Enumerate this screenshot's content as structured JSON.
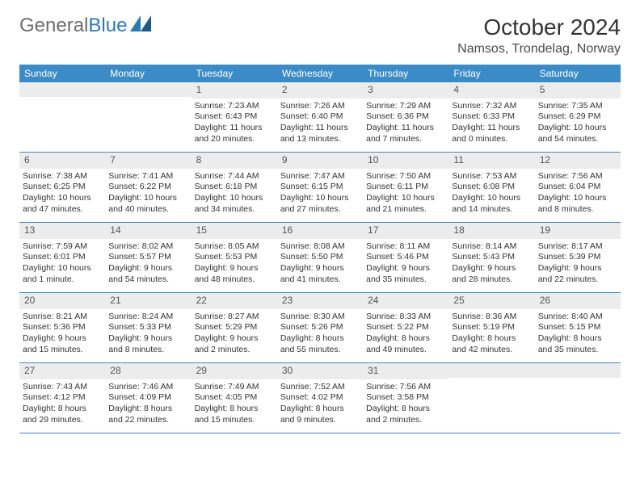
{
  "logo": {
    "line1": "General",
    "line2": "Blue"
  },
  "month_title": "October 2024",
  "location": "Namsos, Trondelag, Norway",
  "colors": {
    "header_bar": "#3b8bc7",
    "daynum_bg": "#ececec",
    "logo_gray": "#6d6d6d",
    "logo_blue": "#2a7ab9",
    "logo_icon": "#2a7ab9"
  },
  "weekdays": [
    "Sunday",
    "Monday",
    "Tuesday",
    "Wednesday",
    "Thursday",
    "Friday",
    "Saturday"
  ],
  "weeks": [
    [
      {
        "empty": true
      },
      {
        "empty": true
      },
      {
        "num": "1",
        "sunrise": "Sunrise: 7:23 AM",
        "sunset": "Sunset: 6:43 PM",
        "dl1": "Daylight: 11 hours",
        "dl2": "and 20 minutes."
      },
      {
        "num": "2",
        "sunrise": "Sunrise: 7:26 AM",
        "sunset": "Sunset: 6:40 PM",
        "dl1": "Daylight: 11 hours",
        "dl2": "and 13 minutes."
      },
      {
        "num": "3",
        "sunrise": "Sunrise: 7:29 AM",
        "sunset": "Sunset: 6:36 PM",
        "dl1": "Daylight: 11 hours",
        "dl2": "and 7 minutes."
      },
      {
        "num": "4",
        "sunrise": "Sunrise: 7:32 AM",
        "sunset": "Sunset: 6:33 PM",
        "dl1": "Daylight: 11 hours",
        "dl2": "and 0 minutes."
      },
      {
        "num": "5",
        "sunrise": "Sunrise: 7:35 AM",
        "sunset": "Sunset: 6:29 PM",
        "dl1": "Daylight: 10 hours",
        "dl2": "and 54 minutes."
      }
    ],
    [
      {
        "num": "6",
        "sunrise": "Sunrise: 7:38 AM",
        "sunset": "Sunset: 6:25 PM",
        "dl1": "Daylight: 10 hours",
        "dl2": "and 47 minutes."
      },
      {
        "num": "7",
        "sunrise": "Sunrise: 7:41 AM",
        "sunset": "Sunset: 6:22 PM",
        "dl1": "Daylight: 10 hours",
        "dl2": "and 40 minutes."
      },
      {
        "num": "8",
        "sunrise": "Sunrise: 7:44 AM",
        "sunset": "Sunset: 6:18 PM",
        "dl1": "Daylight: 10 hours",
        "dl2": "and 34 minutes."
      },
      {
        "num": "9",
        "sunrise": "Sunrise: 7:47 AM",
        "sunset": "Sunset: 6:15 PM",
        "dl1": "Daylight: 10 hours",
        "dl2": "and 27 minutes."
      },
      {
        "num": "10",
        "sunrise": "Sunrise: 7:50 AM",
        "sunset": "Sunset: 6:11 PM",
        "dl1": "Daylight: 10 hours",
        "dl2": "and 21 minutes."
      },
      {
        "num": "11",
        "sunrise": "Sunrise: 7:53 AM",
        "sunset": "Sunset: 6:08 PM",
        "dl1": "Daylight: 10 hours",
        "dl2": "and 14 minutes."
      },
      {
        "num": "12",
        "sunrise": "Sunrise: 7:56 AM",
        "sunset": "Sunset: 6:04 PM",
        "dl1": "Daylight: 10 hours",
        "dl2": "and 8 minutes."
      }
    ],
    [
      {
        "num": "13",
        "sunrise": "Sunrise: 7:59 AM",
        "sunset": "Sunset: 6:01 PM",
        "dl1": "Daylight: 10 hours",
        "dl2": "and 1 minute."
      },
      {
        "num": "14",
        "sunrise": "Sunrise: 8:02 AM",
        "sunset": "Sunset: 5:57 PM",
        "dl1": "Daylight: 9 hours",
        "dl2": "and 54 minutes."
      },
      {
        "num": "15",
        "sunrise": "Sunrise: 8:05 AM",
        "sunset": "Sunset: 5:53 PM",
        "dl1": "Daylight: 9 hours",
        "dl2": "and 48 minutes."
      },
      {
        "num": "16",
        "sunrise": "Sunrise: 8:08 AM",
        "sunset": "Sunset: 5:50 PM",
        "dl1": "Daylight: 9 hours",
        "dl2": "and 41 minutes."
      },
      {
        "num": "17",
        "sunrise": "Sunrise: 8:11 AM",
        "sunset": "Sunset: 5:46 PM",
        "dl1": "Daylight: 9 hours",
        "dl2": "and 35 minutes."
      },
      {
        "num": "18",
        "sunrise": "Sunrise: 8:14 AM",
        "sunset": "Sunset: 5:43 PM",
        "dl1": "Daylight: 9 hours",
        "dl2": "and 28 minutes."
      },
      {
        "num": "19",
        "sunrise": "Sunrise: 8:17 AM",
        "sunset": "Sunset: 5:39 PM",
        "dl1": "Daylight: 9 hours",
        "dl2": "and 22 minutes."
      }
    ],
    [
      {
        "num": "20",
        "sunrise": "Sunrise: 8:21 AM",
        "sunset": "Sunset: 5:36 PM",
        "dl1": "Daylight: 9 hours",
        "dl2": "and 15 minutes."
      },
      {
        "num": "21",
        "sunrise": "Sunrise: 8:24 AM",
        "sunset": "Sunset: 5:33 PM",
        "dl1": "Daylight: 9 hours",
        "dl2": "and 8 minutes."
      },
      {
        "num": "22",
        "sunrise": "Sunrise: 8:27 AM",
        "sunset": "Sunset: 5:29 PM",
        "dl1": "Daylight: 9 hours",
        "dl2": "and 2 minutes."
      },
      {
        "num": "23",
        "sunrise": "Sunrise: 8:30 AM",
        "sunset": "Sunset: 5:26 PM",
        "dl1": "Daylight: 8 hours",
        "dl2": "and 55 minutes."
      },
      {
        "num": "24",
        "sunrise": "Sunrise: 8:33 AM",
        "sunset": "Sunset: 5:22 PM",
        "dl1": "Daylight: 8 hours",
        "dl2": "and 49 minutes."
      },
      {
        "num": "25",
        "sunrise": "Sunrise: 8:36 AM",
        "sunset": "Sunset: 5:19 PM",
        "dl1": "Daylight: 8 hours",
        "dl2": "and 42 minutes."
      },
      {
        "num": "26",
        "sunrise": "Sunrise: 8:40 AM",
        "sunset": "Sunset: 5:15 PM",
        "dl1": "Daylight: 8 hours",
        "dl2": "and 35 minutes."
      }
    ],
    [
      {
        "num": "27",
        "sunrise": "Sunrise: 7:43 AM",
        "sunset": "Sunset: 4:12 PM",
        "dl1": "Daylight: 8 hours",
        "dl2": "and 29 minutes."
      },
      {
        "num": "28",
        "sunrise": "Sunrise: 7:46 AM",
        "sunset": "Sunset: 4:09 PM",
        "dl1": "Daylight: 8 hours",
        "dl2": "and 22 minutes."
      },
      {
        "num": "29",
        "sunrise": "Sunrise: 7:49 AM",
        "sunset": "Sunset: 4:05 PM",
        "dl1": "Daylight: 8 hours",
        "dl2": "and 15 minutes."
      },
      {
        "num": "30",
        "sunrise": "Sunrise: 7:52 AM",
        "sunset": "Sunset: 4:02 PM",
        "dl1": "Daylight: 8 hours",
        "dl2": "and 9 minutes."
      },
      {
        "num": "31",
        "sunrise": "Sunrise: 7:56 AM",
        "sunset": "Sunset: 3:58 PM",
        "dl1": "Daylight: 8 hours",
        "dl2": "and 2 minutes."
      },
      {
        "empty": true
      },
      {
        "empty": true
      }
    ]
  ]
}
